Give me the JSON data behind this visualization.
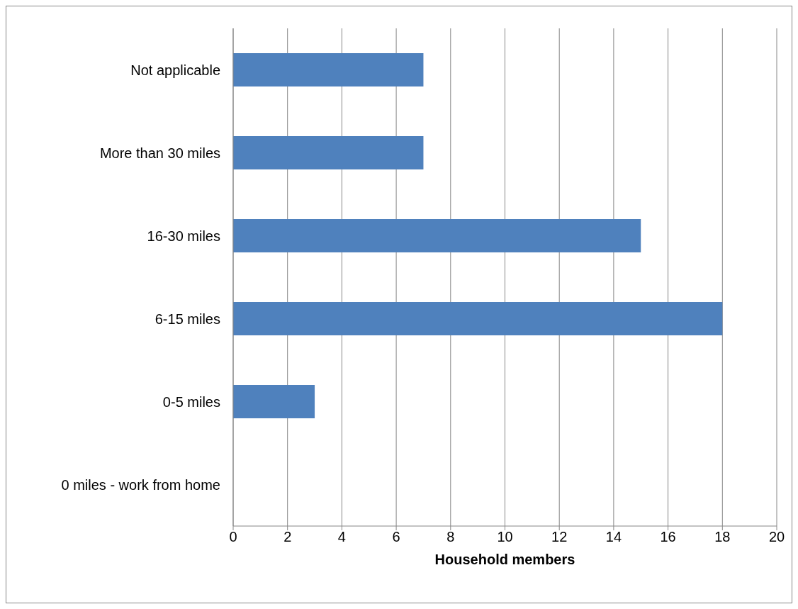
{
  "chart_data": {
    "type": "bar",
    "orientation": "horizontal",
    "xlabel": "Household members",
    "categories": [
      "Not applicable",
      "More than 30 miles",
      "16-30 miles",
      "6-15 miles",
      "0-5 miles",
      "0 miles - work from home"
    ],
    "values": [
      7,
      7,
      15,
      18,
      3,
      0
    ],
    "color": "#4f81bd",
    "xlim": [
      0,
      20
    ],
    "xticks": [
      0,
      2,
      4,
      6,
      8,
      10,
      12,
      14,
      16,
      18,
      20
    ],
    "grid": "x"
  }
}
